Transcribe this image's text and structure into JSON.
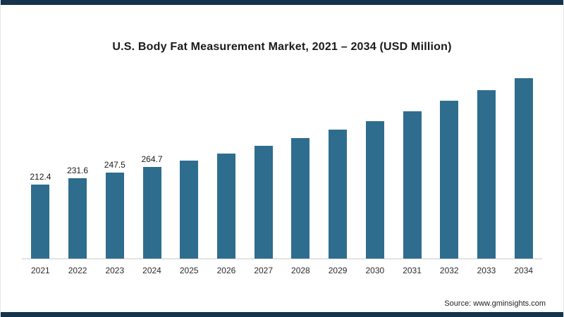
{
  "page": {
    "accent_color": "#14334d",
    "background_color": "#ffffff"
  },
  "chart": {
    "title": "U.S. Body Fat Measurement Market, 2021 – 2034 (USD Million)",
    "source": "Source: www.gminsights.com",
    "bar_color": "#2e6d8e"
  },
  "chart_data": {
    "type": "bar",
    "title": "U.S. Body Fat Measurement Market, 2021 – 2034 (USD Million)",
    "xlabel": "",
    "ylabel": "USD Million",
    "categories": [
      "2021",
      "2022",
      "2023",
      "2024",
      "2025",
      "2026",
      "2027",
      "2028",
      "2029",
      "2030",
      "2031",
      "2032",
      "2033",
      "2034"
    ],
    "values": [
      212.4,
      231.6,
      247.5,
      264.7,
      283.2,
      303.0,
      324.1,
      346.8,
      371.0,
      396.9,
      424.7,
      454.4,
      486.1,
      520.1
    ],
    "bar_labels": [
      "212.4",
      "231.6",
      "247.5",
      "264.7",
      "",
      "",
      "",
      "",
      "",
      "",
      "",
      "",
      "",
      ""
    ],
    "ylim": [
      0,
      560
    ],
    "grid": "off",
    "legend": "none",
    "bar_color": "#2e6d8e",
    "source": "Source: www.gminsights.com"
  }
}
